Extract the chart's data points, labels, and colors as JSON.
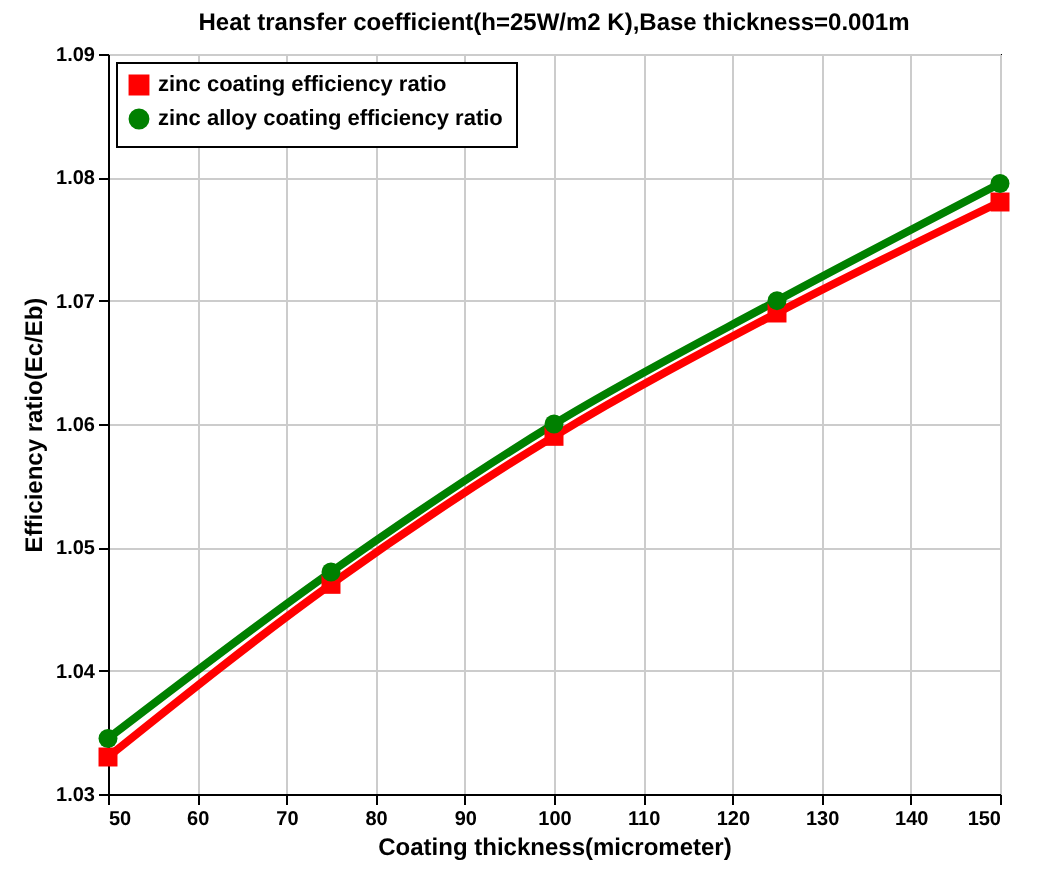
{
  "chart_data": {
    "type": "line",
    "title": "Heat transfer coefficient(h=25W/m2 K),Base thickness=0.001m",
    "xlabel": "Coating thickness(micrometer)",
    "ylabel": "Efficiency ratio(Ec/Eb)",
    "x": [
      50,
      75,
      100,
      125,
      150
    ],
    "series": [
      {
        "name": "zinc coating efficiency ratio",
        "color": "#ff0000",
        "marker": "square",
        "values": [
          1.033,
          1.047,
          1.059,
          1.069,
          1.078
        ]
      },
      {
        "name": "zinc alloy coating efficiency ratio",
        "color": "#008000",
        "marker": "circle",
        "values": [
          1.0345,
          1.048,
          1.06,
          1.07,
          1.0795
        ]
      }
    ],
    "xlim": [
      50,
      150
    ],
    "xticks": [
      50,
      60,
      70,
      80,
      90,
      100,
      110,
      120,
      130,
      140,
      150
    ],
    "ylim": [
      1.03,
      1.09
    ],
    "yticks": [
      1.03,
      1.04,
      1.05,
      1.06,
      1.07,
      1.08,
      1.09
    ],
    "grid": true,
    "legend": "top left",
    "line_style": "solid"
  }
}
